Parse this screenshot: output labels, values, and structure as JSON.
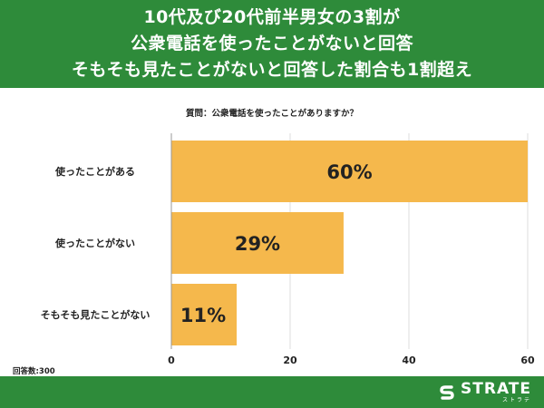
{
  "header": {
    "lines": [
      "10代及び20代前半男女の3割が",
      "公衆電話を使ったことがないと回答",
      "そもそも見たことがないと回答した割合も1割超え"
    ]
  },
  "question": "質問：公衆電話を使ったことがありますか？",
  "respondents": "回答数:300",
  "logo": {
    "text": "STRATE",
    "sub": "ストラテ"
  },
  "colors": {
    "header_bg": "#2e8b3a",
    "bar": "#f5b84c",
    "grid": "#dddddd"
  },
  "chart_data": {
    "type": "bar",
    "orientation": "horizontal",
    "categories": [
      "使ったことがある",
      "使ったことがない",
      "そもそも見たことがない"
    ],
    "values": [
      60,
      29,
      11
    ],
    "value_labels": [
      "60%",
      "29%",
      "11%"
    ],
    "xlim": [
      0,
      60
    ],
    "xticks": [
      0,
      20,
      40,
      60
    ],
    "xtick_labels": [
      "0",
      "20",
      "40",
      "60"
    ],
    "grid": true
  }
}
